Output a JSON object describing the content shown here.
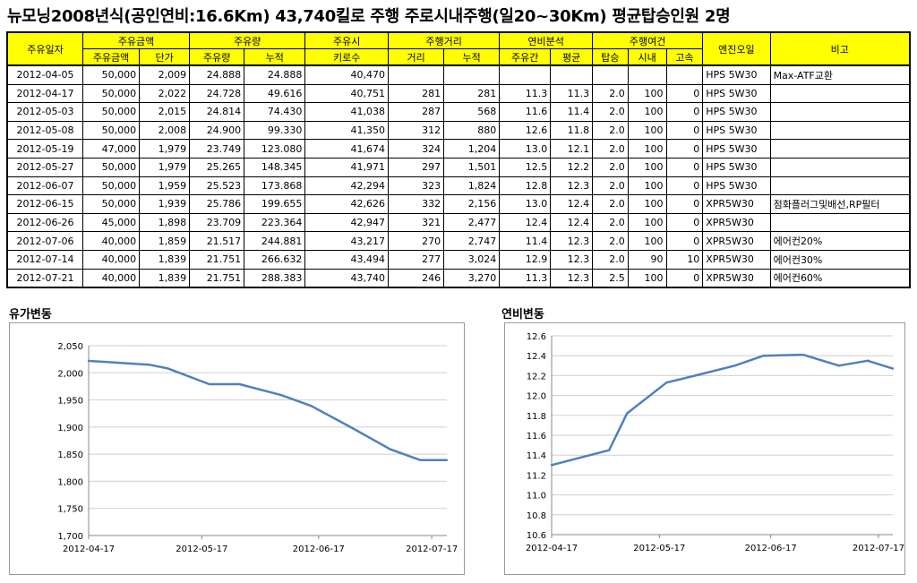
{
  "title": "뉴모닝2008년식(공인연비:16.6Km) 43,740킬로 주행 주로시내주행(일20~30Km) 평균탑승인원 2명",
  "table": {
    "header_top": {
      "date": "주유일자",
      "amount": "주유금액",
      "volume": "주유량",
      "odometer": "주유시",
      "distance": "주행거리",
      "efficiency": "연비분석",
      "conditions": "주행여건",
      "oil": "엔진오일",
      "note": "비고"
    },
    "header_sub": {
      "amount": "주유금액",
      "unit_price": "단가",
      "volume": "주유량",
      "volume_cum": "누적",
      "odometer": "키로수",
      "dist": "거리",
      "dist_cum": "누적",
      "eff_interval": "주유간",
      "eff_avg": "평균",
      "riders": "탑승",
      "city": "시내",
      "highway": "고속"
    },
    "rows": [
      {
        "date": "2012-04-05",
        "amount": "50,000",
        "price": "2,009",
        "vol": "24.888",
        "vol_cum": "24.888",
        "odo": "40,470",
        "dist": "",
        "dist_cum": "",
        "eff": "",
        "avg": "",
        "riders": "",
        "city": "",
        "hwy": "",
        "oil": "HPS 5W30",
        "note": "Max-ATF교환"
      },
      {
        "date": "2012-04-17",
        "amount": "50,000",
        "price": "2,022",
        "vol": "24.728",
        "vol_cum": "49.616",
        "odo": "40,751",
        "dist": "281",
        "dist_cum": "281",
        "eff": "11.3",
        "avg": "11.3",
        "riders": "2.0",
        "city": "100",
        "hwy": "0",
        "oil": "HPS 5W30",
        "note": ""
      },
      {
        "date": "2012-05-03",
        "amount": "50,000",
        "price": "2,015",
        "vol": "24.814",
        "vol_cum": "74.430",
        "odo": "41,038",
        "dist": "287",
        "dist_cum": "568",
        "eff": "11.6",
        "avg": "11.4",
        "riders": "2.0",
        "city": "100",
        "hwy": "0",
        "oil": "HPS 5W30",
        "note": ""
      },
      {
        "date": "2012-05-08",
        "amount": "50,000",
        "price": "2,008",
        "vol": "24.900",
        "vol_cum": "99.330",
        "odo": "41,350",
        "dist": "312",
        "dist_cum": "880",
        "eff": "12.6",
        "avg": "11.8",
        "riders": "2.0",
        "city": "100",
        "hwy": "0",
        "oil": "HPS 5W30",
        "note": ""
      },
      {
        "date": "2012-05-19",
        "amount": "47,000",
        "price": "1,979",
        "vol": "23.749",
        "vol_cum": "123.080",
        "odo": "41,674",
        "dist": "324",
        "dist_cum": "1,204",
        "eff": "13.0",
        "avg": "12.1",
        "riders": "2.0",
        "city": "100",
        "hwy": "0",
        "oil": "HPS 5W30",
        "note": ""
      },
      {
        "date": "2012-05-27",
        "amount": "50,000",
        "price": "1,979",
        "vol": "25.265",
        "vol_cum": "148.345",
        "odo": "41,971",
        "dist": "297",
        "dist_cum": "1,501",
        "eff": "12.5",
        "avg": "12.2",
        "riders": "2.0",
        "city": "100",
        "hwy": "0",
        "oil": "HPS 5W30",
        "note": ""
      },
      {
        "date": "2012-06-07",
        "amount": "50,000",
        "price": "1,959",
        "vol": "25.523",
        "vol_cum": "173.868",
        "odo": "42,294",
        "dist": "323",
        "dist_cum": "1,824",
        "eff": "12.8",
        "avg": "12.3",
        "riders": "2.0",
        "city": "100",
        "hwy": "0",
        "oil": "HPS 5W30",
        "note": ""
      },
      {
        "date": "2012-06-15",
        "amount": "50,000",
        "price": "1,939",
        "vol": "25.786",
        "vol_cum": "199.655",
        "odo": "42,626",
        "dist": "332",
        "dist_cum": "2,156",
        "eff": "13.0",
        "avg": "12.4",
        "riders": "2.0",
        "city": "100",
        "hwy": "0",
        "oil": "XPR5W30",
        "note": "점화플러그및배선,RP필터"
      },
      {
        "date": "2012-06-26",
        "amount": "45,000",
        "price": "1,898",
        "vol": "23.709",
        "vol_cum": "223.364",
        "odo": "42,947",
        "dist": "321",
        "dist_cum": "2,477",
        "eff": "12.4",
        "avg": "12.4",
        "riders": "2.0",
        "city": "100",
        "hwy": "0",
        "oil": "XPR5W30",
        "note": ""
      },
      {
        "date": "2012-07-06",
        "amount": "40,000",
        "price": "1,859",
        "vol": "21.517",
        "vol_cum": "244.881",
        "odo": "43,217",
        "dist": "270",
        "dist_cum": "2,747",
        "eff": "11.4",
        "avg": "12.3",
        "riders": "2.0",
        "city": "100",
        "hwy": "0",
        "oil": "XPR5W30",
        "note": "에어컨20%"
      },
      {
        "date": "2012-07-14",
        "amount": "40,000",
        "price": "1,839",
        "vol": "21.751",
        "vol_cum": "266.632",
        "odo": "43,494",
        "dist": "277",
        "dist_cum": "3,024",
        "eff": "12.9",
        "avg": "12.3",
        "riders": "2.0",
        "city": "90",
        "hwy": "10",
        "oil": "XPR5W30",
        "note": "에어컨30%"
      },
      {
        "date": "2012-07-21",
        "amount": "40,000",
        "price": "1,839",
        "vol": "21.751",
        "vol_cum": "288.383",
        "odo": "43,740",
        "dist": "246",
        "dist_cum": "3,270",
        "eff": "11.3",
        "avg": "12.3",
        "riders": "2.5",
        "city": "100",
        "hwy": "0",
        "oil": "XPR5W30",
        "note": "에어컨60%"
      }
    ]
  },
  "price_section_title": "유가변동",
  "efficiency_section_title": "연비변동",
  "line_color": "#4f81bd",
  "chart_data": [
    {
      "type": "line",
      "title": "유가변동",
      "x": [
        "2012-04-17",
        "2012-05-03",
        "2012-05-08",
        "2012-05-19",
        "2012-05-27",
        "2012-06-07",
        "2012-06-15",
        "2012-06-26",
        "2012-07-06",
        "2012-07-14",
        "2012-07-21"
      ],
      "x_days": [
        0,
        16,
        21,
        32,
        40,
        51,
        59,
        70,
        80,
        88,
        95
      ],
      "values": [
        2022,
        2015,
        2008,
        1979,
        1979,
        1959,
        1939,
        1898,
        1859,
        1839,
        1839
      ],
      "xticks": [
        "2012-04-17",
        "2012-05-17",
        "2012-06-17",
        "2012-07-17"
      ],
      "xtick_days": [
        0,
        30,
        61,
        91
      ],
      "xlim": [
        0,
        95
      ],
      "yticks": [
        "1,700",
        "1,750",
        "1,800",
        "1,850",
        "1,900",
        "1,950",
        "2,000",
        "2,050"
      ],
      "ytick_values": [
        1700,
        1750,
        1800,
        1850,
        1900,
        1950,
        2000,
        2050
      ],
      "ylim": [
        1700,
        2050
      ],
      "grid": true
    },
    {
      "type": "line",
      "title": "연비변동",
      "x": [
        "2012-04-17",
        "2012-05-03",
        "2012-05-08",
        "2012-05-19",
        "2012-05-27",
        "2012-06-07",
        "2012-06-15",
        "2012-06-26",
        "2012-07-06",
        "2012-07-14",
        "2012-07-21"
      ],
      "x_days": [
        0,
        16,
        21,
        32,
        40,
        51,
        59,
        70,
        80,
        88,
        95
      ],
      "values": [
        11.3,
        11.45,
        11.82,
        12.13,
        12.2,
        12.3,
        12.4,
        12.41,
        12.3,
        12.35,
        12.27
      ],
      "xticks": [
        "2012-04-17",
        "2012-05-17",
        "2012-06-17",
        "2012-07-17"
      ],
      "xtick_days": [
        0,
        30,
        61,
        91
      ],
      "xlim": [
        0,
        95
      ],
      "yticks": [
        "10.6",
        "10.8",
        "11.0",
        "11.2",
        "11.4",
        "11.6",
        "11.8",
        "12.0",
        "12.2",
        "12.4",
        "12.6"
      ],
      "ytick_values": [
        10.6,
        10.8,
        11.0,
        11.2,
        11.4,
        11.6,
        11.8,
        12.0,
        12.2,
        12.4,
        12.6
      ],
      "ylim": [
        10.6,
        12.6
      ],
      "grid": true
    }
  ]
}
